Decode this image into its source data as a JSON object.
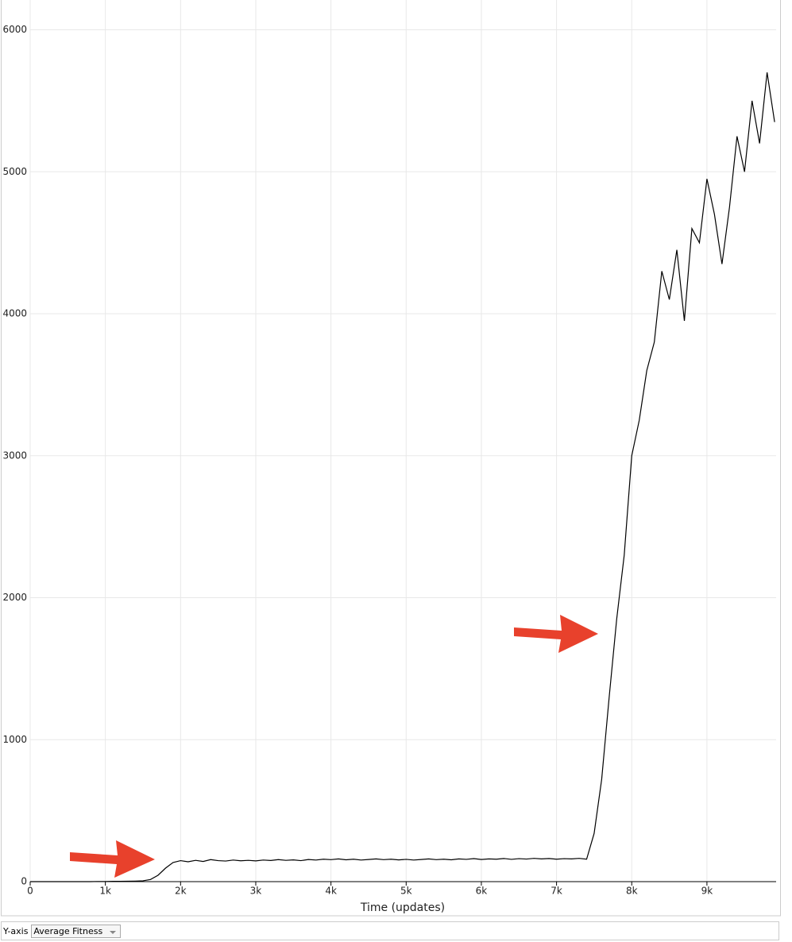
{
  "chart_data": {
    "type": "line",
    "x_label": "Time (updates)",
    "x": [
      0,
      100,
      200,
      300,
      400,
      500,
      600,
      700,
      800,
      900,
      1000,
      1100,
      1200,
      1300,
      1400,
      1500,
      1600,
      1700,
      1800,
      1900,
      2000,
      2100,
      2200,
      2300,
      2400,
      2500,
      2600,
      2700,
      2800,
      2900,
      3000,
      3100,
      3200,
      3300,
      3400,
      3500,
      3600,
      3700,
      3800,
      3900,
      4000,
      4100,
      4200,
      4300,
      4400,
      4500,
      4600,
      4700,
      4800,
      4900,
      5000,
      5100,
      5200,
      5300,
      5400,
      5500,
      5600,
      5700,
      5800,
      5900,
      6000,
      6100,
      6200,
      6300,
      6400,
      6500,
      6600,
      6700,
      6800,
      6900,
      7000,
      7100,
      7200,
      7300,
      7400,
      7500,
      7600,
      7700,
      7800,
      7900,
      8000,
      8100,
      8200,
      8300,
      8400,
      8500,
      8600,
      8700,
      8800,
      8900,
      9000,
      9100,
      9200,
      9300,
      9400,
      9500,
      9600,
      9700,
      9800,
      9900
    ],
    "values": [
      0,
      0,
      0,
      0,
      0,
      0,
      0,
      0,
      0,
      1,
      1,
      2,
      2,
      3,
      4,
      6,
      15,
      45,
      95,
      135,
      148,
      140,
      150,
      142,
      155,
      148,
      145,
      152,
      147,
      150,
      146,
      152,
      149,
      155,
      150,
      153,
      148,
      156,
      152,
      158,
      155,
      160,
      154,
      158,
      152,
      156,
      160,
      155,
      158,
      153,
      157,
      152,
      156,
      160,
      155,
      158,
      154,
      160,
      157,
      162,
      156,
      160,
      158,
      163,
      157,
      162,
      159,
      164,
      160,
      163,
      158,
      162,
      160,
      164,
      158,
      340,
      720,
      1300,
      1850,
      2300,
      3000,
      3250,
      3600,
      3800,
      4300,
      4100,
      4450,
      3950,
      4600,
      4500,
      4950,
      4700,
      4350,
      4750,
      5250,
      5000,
      5500,
      5200,
      5700,
      5350
    ],
    "color": "#000000",
    "xlim": [
      0,
      9920
    ],
    "ylim": [
      0,
      6210
    ],
    "xticks": [
      0,
      {
        "value": 1000,
        "label": "1k"
      },
      {
        "value": 2000,
        "label": "2k"
      },
      {
        "value": 3000,
        "label": "3k"
      },
      {
        "value": 4000,
        "label": "4k"
      },
      {
        "value": 5000,
        "label": "5k"
      },
      {
        "value": 6000,
        "label": "6k"
      },
      {
        "value": 7000,
        "label": "7k"
      },
      {
        "value": 8000,
        "label": "8k"
      },
      {
        "value": 9000,
        "label": "9k"
      }
    ],
    "yticks": [
      0,
      1000,
      2000,
      3000,
      4000,
      5000,
      6000
    ],
    "grid": true
  },
  "controls": {
    "y_axis_label": "Y-axis",
    "y_axis_select": "Average Fitness"
  }
}
